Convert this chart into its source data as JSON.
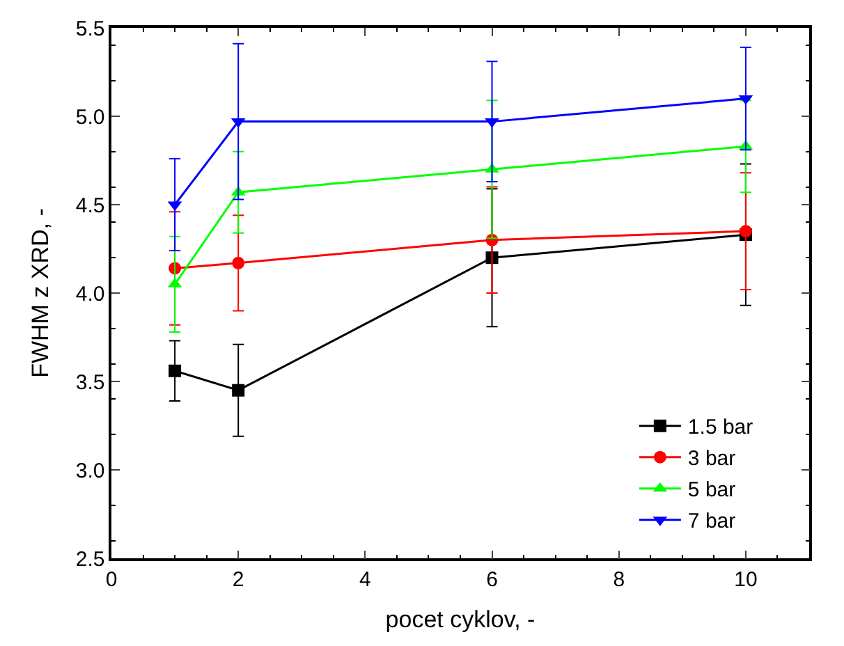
{
  "chart_data": {
    "type": "line",
    "xlabel": "pocet cyklov, -",
    "ylabel": "FWHM z XRD, -",
    "x": [
      1,
      2,
      6,
      10
    ],
    "series": [
      {
        "name": "1.5 bar",
        "color": "#000000",
        "marker": "square",
        "values": [
          3.56,
          3.45,
          4.2,
          4.33
        ],
        "errors": [
          0.17,
          0.26,
          0.39,
          0.4
        ]
      },
      {
        "name": "3 bar",
        "color": "#ff0000",
        "marker": "circle",
        "values": [
          4.14,
          4.17,
          4.3,
          4.35
        ],
        "errors": [
          0.32,
          0.27,
          0.3,
          0.33
        ]
      },
      {
        "name": "5 bar",
        "color": "#00ff00",
        "marker": "triangle",
        "values": [
          4.05,
          4.57,
          4.7,
          4.83
        ],
        "errors": [
          0.27,
          0.23,
          0.39,
          0.26
        ]
      },
      {
        "name": "7 bar",
        "color": "#0000ff",
        "marker": "triangle-down",
        "values": [
          4.5,
          4.97,
          4.97,
          5.1
        ],
        "errors": [
          0.26,
          0.44,
          0.34,
          0.29
        ]
      }
    ],
    "xlim": [
      0,
      11
    ],
    "xticks": [
      0,
      2,
      4,
      6,
      8,
      10
    ],
    "ylim": [
      2.5,
      5.5
    ],
    "yticks": [
      {
        "value": 2.5,
        "label": "2.5"
      },
      {
        "value": 3,
        "label": "3.0"
      },
      {
        "value": 3.5,
        "label": "3.5"
      },
      {
        "value": 4,
        "label": "4.0"
      },
      {
        "value": 4.5,
        "label": "4.5"
      },
      {
        "value": 5,
        "label": "5.0"
      },
      {
        "value": 5.5,
        "label": "5.5"
      }
    ],
    "legend": "bottom right",
    "line_style": "solid"
  }
}
